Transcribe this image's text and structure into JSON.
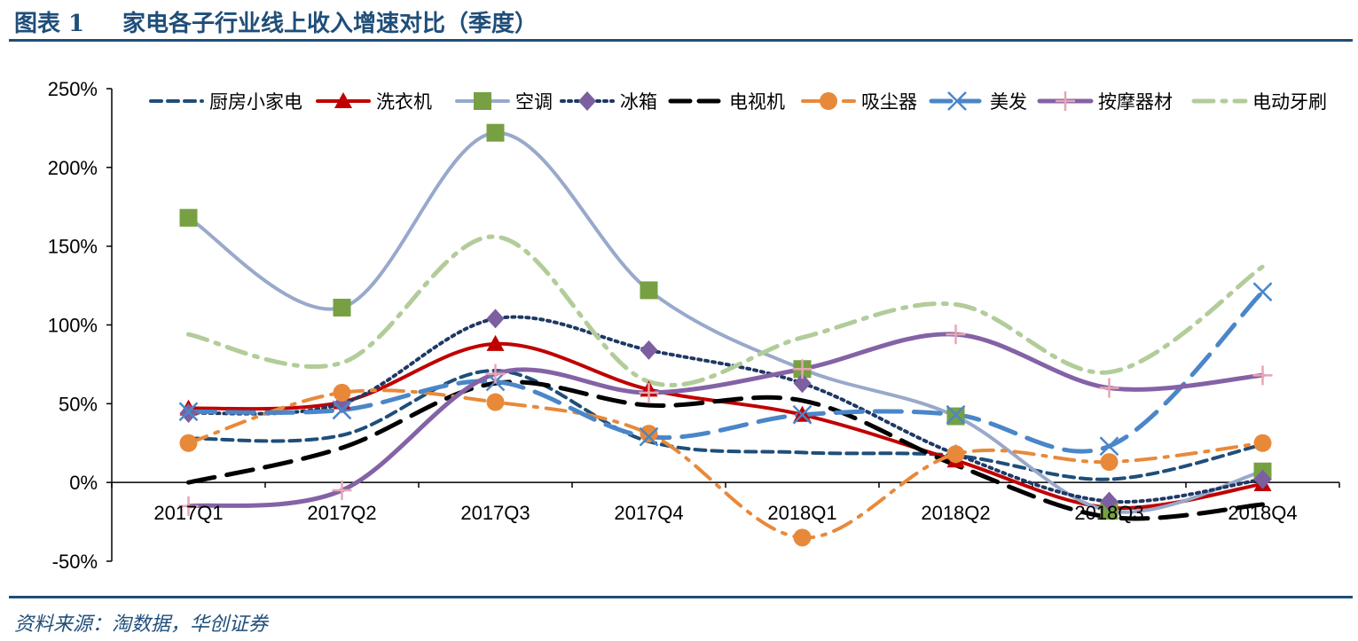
{
  "header": {
    "figure_label": "图表 1",
    "title": "家电各子行业线上收入增速对比（季度）"
  },
  "footer": {
    "source": "资料来源：淘数据，华创证券"
  },
  "colors": {
    "title": "#1f4e79",
    "axis": "#000000"
  },
  "chart_data": {
    "type": "line",
    "title": "",
    "xlabel": "",
    "ylabel": "",
    "categories": [
      "2017Q1",
      "2017Q2",
      "2017Q3",
      "2017Q4",
      "2018Q1",
      "2018Q2",
      "2018Q3",
      "2018Q4"
    ],
    "ylim": [
      -0.5,
      2.5
    ],
    "yticks": [
      -0.5,
      0,
      0.5,
      1.0,
      1.5,
      2.0,
      2.5
    ],
    "ytick_labels": [
      "-50%",
      "0%",
      "50%",
      "100%",
      "150%",
      "200%",
      "250%"
    ],
    "grid": false,
    "legend_position": "top",
    "smooth": true,
    "series": [
      {
        "name": "厨房小家电",
        "values": [
          0.28,
          0.3,
          0.71,
          0.26,
          0.19,
          0.17,
          0.02,
          0.24
        ],
        "color": "#1f4e79",
        "dash": "dashed",
        "width": 4,
        "marker": "none"
      },
      {
        "name": "洗衣机",
        "values": [
          0.47,
          0.51,
          0.88,
          0.59,
          0.43,
          0.14,
          -0.16,
          -0.01
        ],
        "color": "#c00000",
        "dash": "solid",
        "width": 4,
        "marker": "triangle"
      },
      {
        "name": "空调",
        "values": [
          1.68,
          1.11,
          2.22,
          1.22,
          0.72,
          0.42,
          -0.18,
          0.07
        ],
        "color": "#98a9cb",
        "dash": "solid",
        "width": 4,
        "marker": "square",
        "marker_color": "#77a043"
      },
      {
        "name": "冰箱",
        "values": [
          0.44,
          0.5,
          1.04,
          0.84,
          0.63,
          0.18,
          -0.12,
          0.02
        ],
        "color": "#1f3864",
        "dash": "dotted",
        "width": 4,
        "marker": "diamond",
        "marker_color": "#7b5fa0"
      },
      {
        "name": "电视机",
        "values": [
          0.0,
          0.22,
          0.63,
          0.49,
          0.52,
          0.11,
          -0.22,
          -0.14
        ],
        "color": "#000000",
        "dash": "longdash",
        "width": 5,
        "marker": "none"
      },
      {
        "name": "吸尘器",
        "values": [
          0.25,
          0.57,
          0.51,
          0.31,
          -0.35,
          0.18,
          0.13,
          0.25
        ],
        "color": "#e8893a",
        "dash": "dashdot",
        "width": 4,
        "marker": "circle"
      },
      {
        "name": "美发",
        "values": [
          0.45,
          0.46,
          0.64,
          0.29,
          0.43,
          0.43,
          0.23,
          1.21
        ],
        "color": "#4a86c8",
        "dash": "longdash",
        "width": 5,
        "marker": "x"
      },
      {
        "name": "按摩器材",
        "values": [
          -0.15,
          -0.05,
          0.69,
          0.57,
          0.72,
          0.94,
          0.6,
          0.68
        ],
        "color": "#8462a6",
        "dash": "solid",
        "width": 5,
        "marker": "plus",
        "marker_color": "#e7a5b5"
      },
      {
        "name": "电动牙刷",
        "values": [
          0.94,
          0.76,
          1.56,
          0.64,
          0.92,
          1.13,
          0.7,
          1.37
        ],
        "color": "#b2cc9a",
        "dash": "dashdot",
        "width": 5,
        "marker": "none"
      }
    ]
  }
}
